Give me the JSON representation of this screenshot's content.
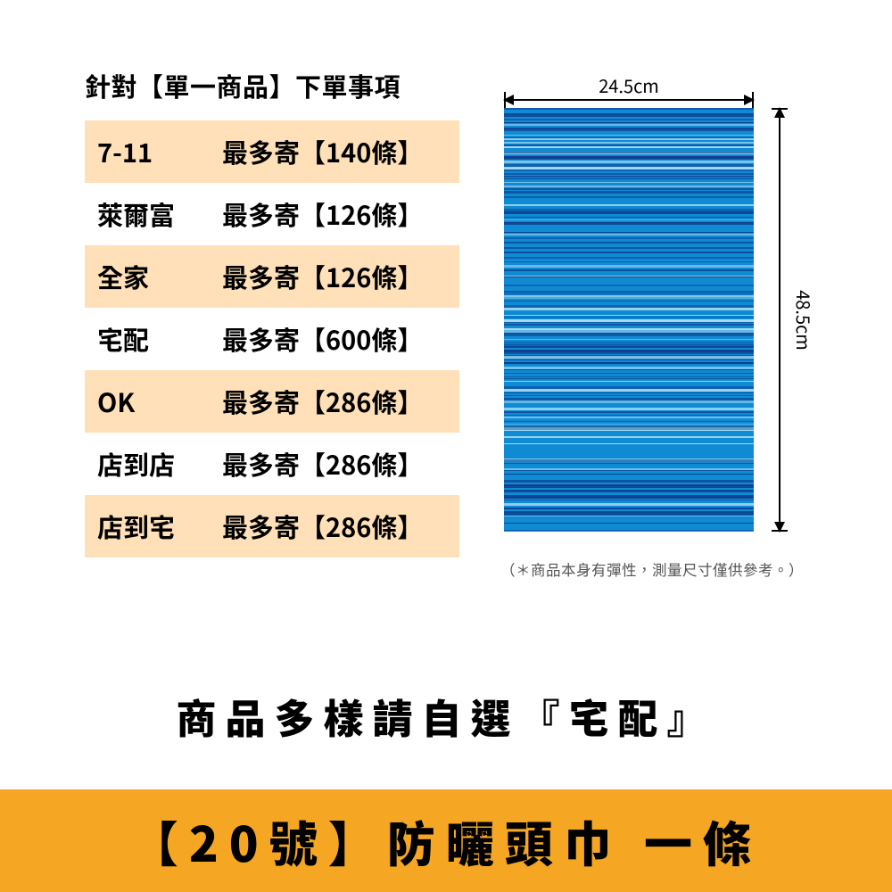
{
  "table": {
    "title": "針對【單一商品】下單事項",
    "row_bg_alt": "#ffe0b8",
    "rows": [
      {
        "name": "7-11",
        "limit": "最多寄【140條】"
      },
      {
        "name": "萊爾富",
        "limit": "最多寄【126條】"
      },
      {
        "name": "全家",
        "limit": "最多寄【126條】"
      },
      {
        "name": "宅配",
        "limit": "最多寄【600條】"
      },
      {
        "name": "OK",
        "limit": "最多寄【286條】"
      },
      {
        "name": "店到店",
        "limit": "最多寄【286條】"
      },
      {
        "name": "店到宅",
        "limit": "最多寄【286條】"
      }
    ]
  },
  "product": {
    "width_label": "24.5cm",
    "height_label": "48.5cm",
    "note": "（＊商品本身有彈性，測量尺寸僅供參考。）",
    "base_color": "#0f8bd4",
    "stripe_dark": "#0e3f8f",
    "stripe_light": "#c7ecf7"
  },
  "mid_banner": "商品多樣請自選『宅配』",
  "bottom_bar": {
    "bg": "#f5a623",
    "text": "【20號】防曬頭巾 一條"
  }
}
